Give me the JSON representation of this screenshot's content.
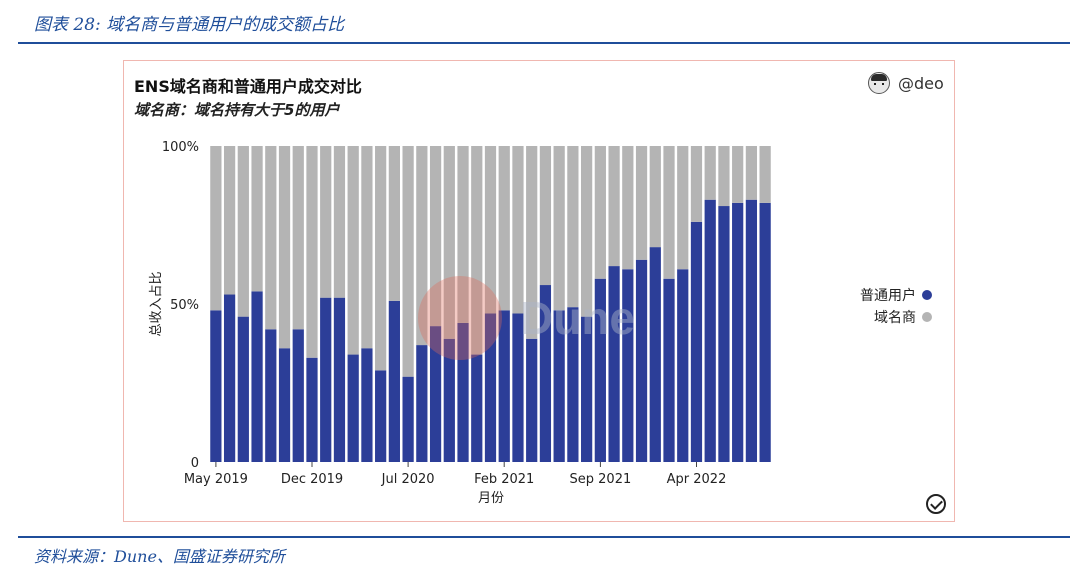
{
  "figure_caption": "图表 28: 域名商与普通用户的成交额占比",
  "source_caption": "资料来源：Dune、国盛证券研究所",
  "author": "@deo",
  "watermark": "Dune",
  "colors": {
    "normal": "#2c3e98",
    "broker": "#b4b4b4",
    "accent": "#1f4e9a"
  },
  "chart_data": {
    "type": "bar",
    "stacked": true,
    "title": "ENS域名商和普通用户成交对比",
    "subtitle": "域名商：域名持有大于5的用户",
    "xlabel": "月份",
    "ylabel": "总收入占比",
    "ylim": [
      0,
      100
    ],
    "yticks": [
      {
        "v": 0,
        "label": "0"
      },
      {
        "v": 50,
        "label": "50%"
      },
      {
        "v": 100,
        "label": "100%"
      }
    ],
    "xticks": [
      {
        "index": 0,
        "label": "May 2019"
      },
      {
        "index": 7,
        "label": "Dec 2019"
      },
      {
        "index": 14,
        "label": "Jul 2020"
      },
      {
        "index": 21,
        "label": "Feb 2021"
      },
      {
        "index": 28,
        "label": "Sep 2021"
      },
      {
        "index": 35,
        "label": "Apr 2022"
      }
    ],
    "categories": [
      "2019-05",
      "2019-06",
      "2019-07",
      "2019-08",
      "2019-09",
      "2019-10",
      "2019-11",
      "2019-12",
      "2020-01",
      "2020-02",
      "2020-03",
      "2020-04",
      "2020-05",
      "2020-06",
      "2020-07",
      "2020-08",
      "2020-09",
      "2020-10",
      "2020-11",
      "2020-12",
      "2021-01",
      "2021-02",
      "2021-03",
      "2021-04",
      "2021-05",
      "2021-06",
      "2021-07",
      "2021-08",
      "2021-09",
      "2021-10",
      "2021-11",
      "2021-12",
      "2022-01",
      "2022-02",
      "2022-03",
      "2022-04",
      "2022-05",
      "2022-06",
      "2022-07",
      "2022-08",
      "2022-09"
    ],
    "series": [
      {
        "name": "普通用户",
        "values": [
          48,
          53,
          46,
          54,
          42,
          36,
          42,
          33,
          52,
          52,
          34,
          36,
          29,
          51,
          27,
          37,
          43,
          39,
          44,
          34,
          47,
          48,
          47,
          39,
          56,
          48,
          49,
          46,
          58,
          62,
          61,
          64,
          68,
          58,
          61,
          76,
          83,
          81,
          82,
          83,
          82
        ]
      },
      {
        "name": "域名商",
        "values": [
          52,
          47,
          54,
          46,
          58,
          64,
          58,
          67,
          48,
          48,
          66,
          64,
          71,
          49,
          73,
          63,
          57,
          61,
          56,
          66,
          53,
          52,
          53,
          61,
          44,
          52,
          51,
          54,
          42,
          38,
          39,
          36,
          32,
          42,
          39,
          24,
          17,
          19,
          18,
          17,
          18
        ]
      }
    ],
    "legend_position": "right",
    "grid": false
  }
}
